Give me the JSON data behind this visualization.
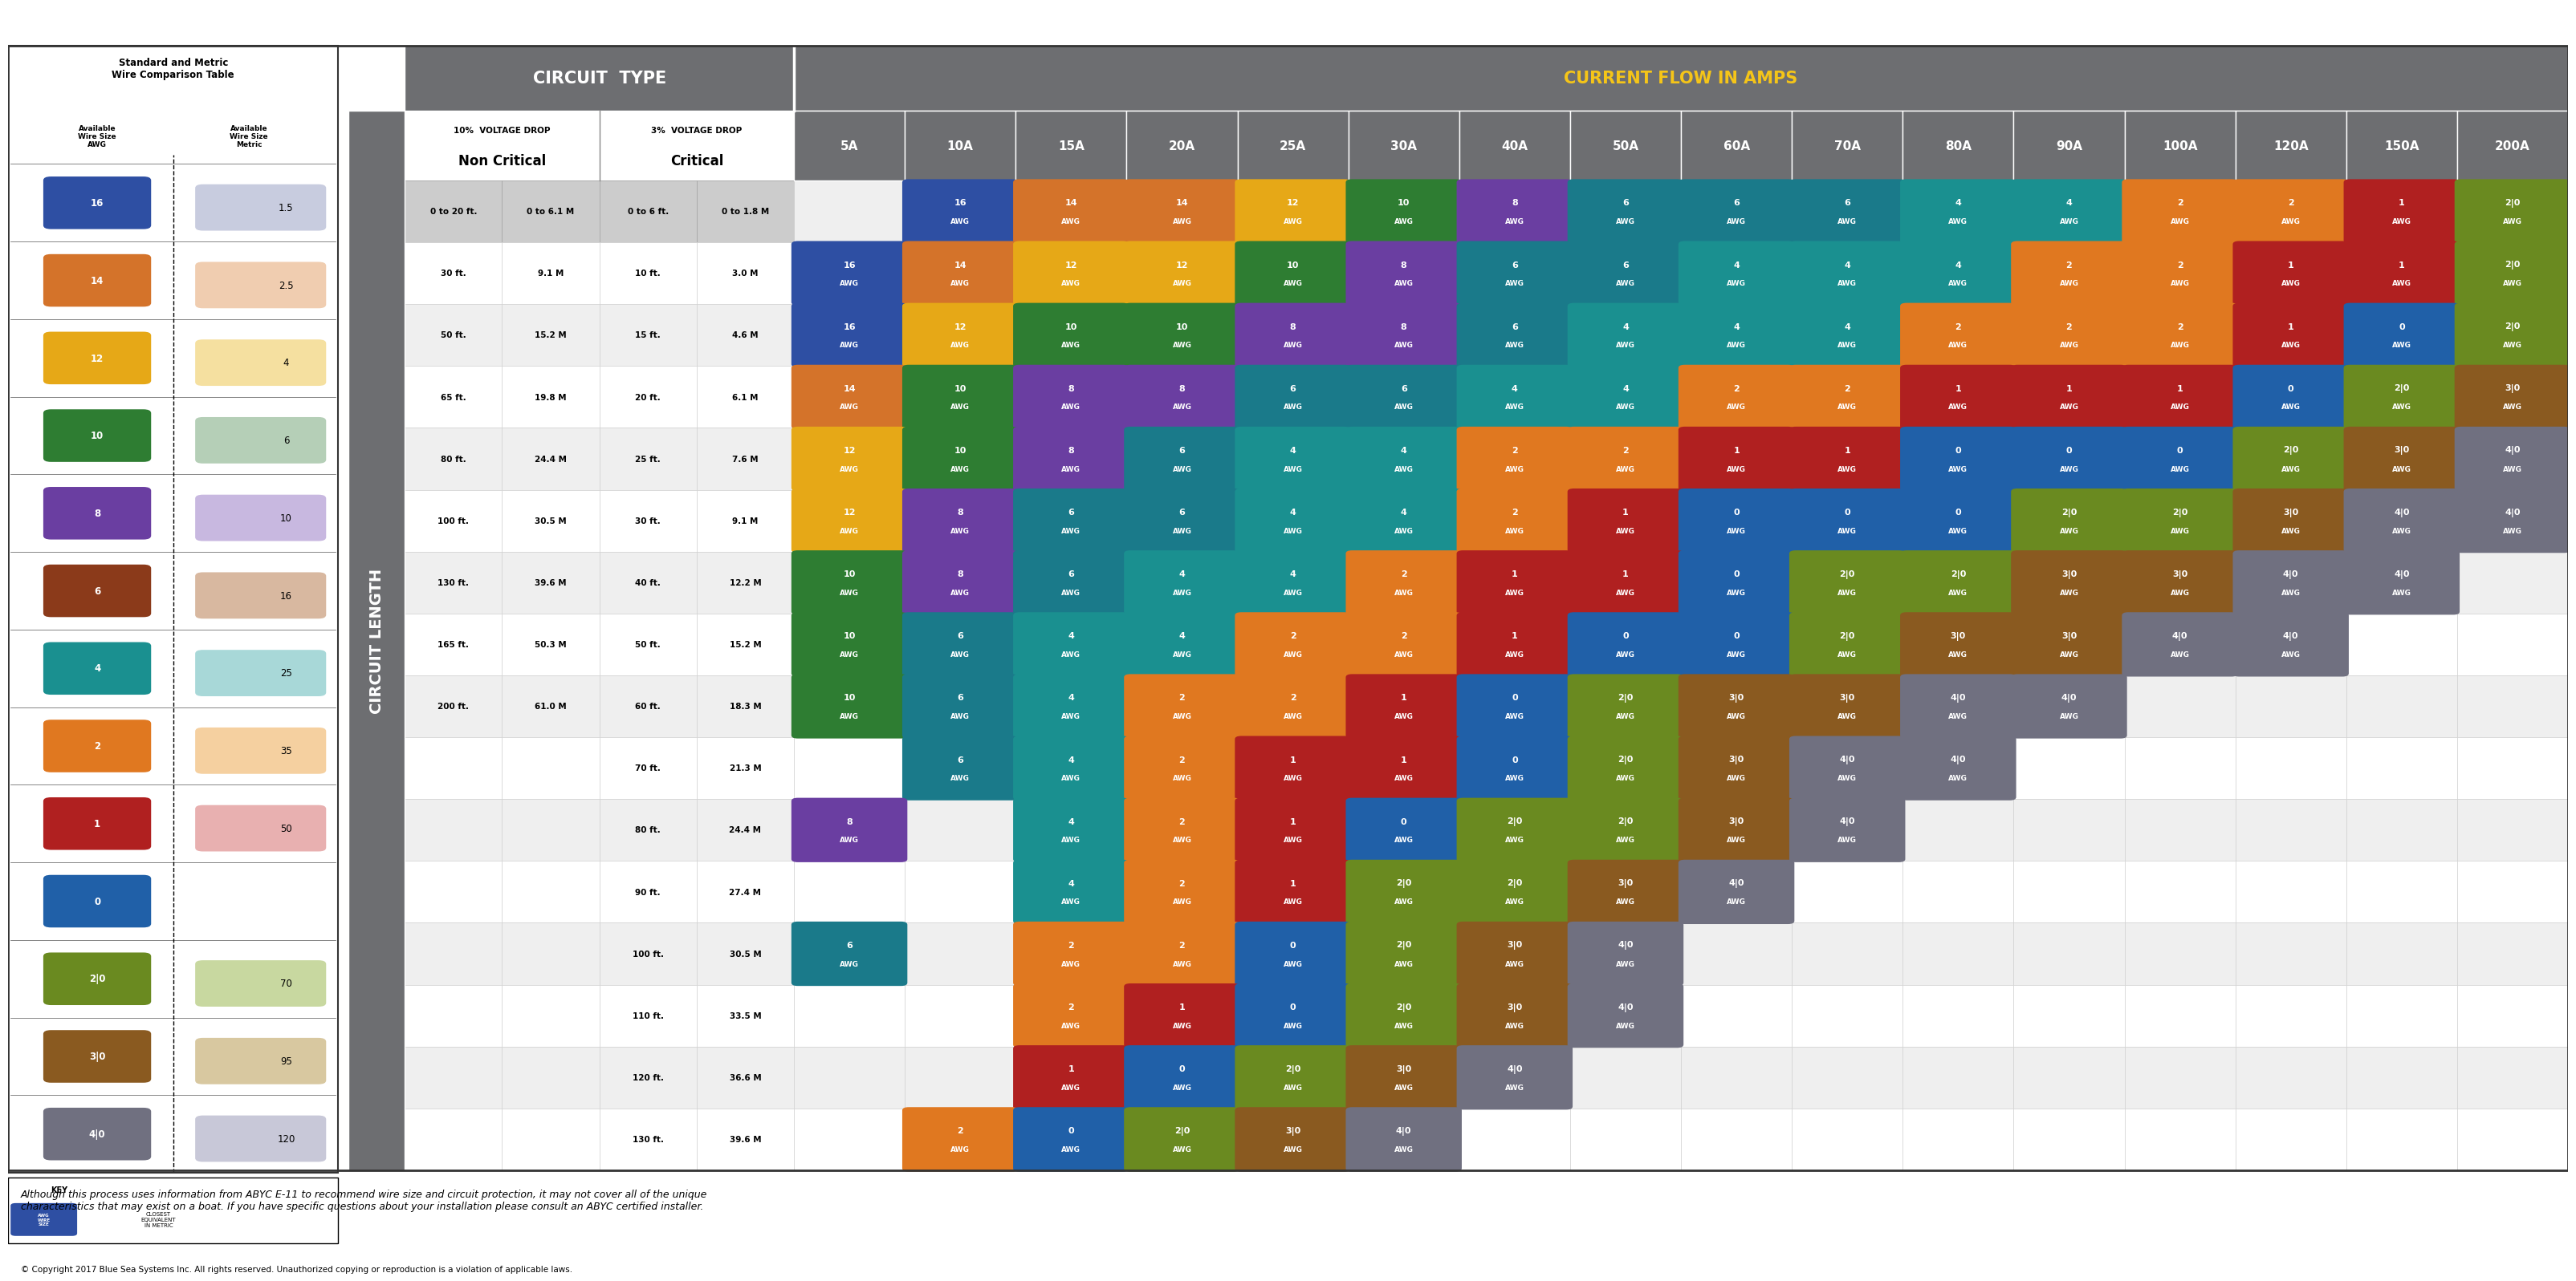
{
  "title_circuit": "CIRCUIT  TYPE",
  "title_current": "CURRENT FLOW IN AMPS",
  "header_bg": "#6d6e71",
  "amp_columns": [
    "5A",
    "10A",
    "15A",
    "20A",
    "25A",
    "30A",
    "40A",
    "50A",
    "60A",
    "70A",
    "80A",
    "90A",
    "100A",
    "120A",
    "150A",
    "200A"
  ],
  "circuit_rows": [
    [
      "0 to 20 ft.",
      "0 to 6.1 M",
      "0 to 6 ft.",
      "0 to 1.8 M"
    ],
    [
      "30 ft.",
      "9.1 M",
      "10 ft.",
      "3.0 M"
    ],
    [
      "50 ft.",
      "15.2 M",
      "15 ft.",
      "4.6 M"
    ],
    [
      "65 ft.",
      "19.8 M",
      "20 ft.",
      "6.1 M"
    ],
    [
      "80 ft.",
      "24.4 M",
      "25 ft.",
      "7.6 M"
    ],
    [
      "100 ft.",
      "30.5 M",
      "30 ft.",
      "9.1 M"
    ],
    [
      "130 ft.",
      "39.6 M",
      "40 ft.",
      "12.2 M"
    ],
    [
      "165 ft.",
      "50.3 M",
      "50 ft.",
      "15.2 M"
    ],
    [
      "200 ft.",
      "61.0 M",
      "60 ft.",
      "18.3 M"
    ],
    [
      "",
      "",
      "70 ft.",
      "21.3 M"
    ],
    [
      "",
      "",
      "80 ft.",
      "24.4 M"
    ],
    [
      "",
      "",
      "90 ft.",
      "27.4 M"
    ],
    [
      "",
      "",
      "100 ft.",
      "30.5 M"
    ],
    [
      "",
      "",
      "110 ft.",
      "33.5 M"
    ],
    [
      "",
      "",
      "120 ft.",
      "36.6 M"
    ],
    [
      "",
      "",
      "130 ft.",
      "39.6 M"
    ]
  ],
  "cells": [
    [
      0,
      1,
      "16\nAWG",
      "#2e4fa3"
    ],
    [
      0,
      2,
      "14\nAWG",
      "#d4732a"
    ],
    [
      0,
      3,
      "14\nAWG",
      "#d4732a"
    ],
    [
      0,
      4,
      "12\nAWG",
      "#e6a817"
    ],
    [
      0,
      5,
      "10\nAWG",
      "#2e7d32"
    ],
    [
      0,
      6,
      "8\nAWG",
      "#6a3ea1"
    ],
    [
      0,
      7,
      "6\nAWG",
      "#1a7a8a"
    ],
    [
      0,
      8,
      "6\nAWG",
      "#1a7a8a"
    ],
    [
      0,
      9,
      "6\nAWG",
      "#1a7a8a"
    ],
    [
      0,
      10,
      "4\nAWG",
      "#1a9090"
    ],
    [
      0,
      11,
      "4\nAWG",
      "#1a9090"
    ],
    [
      0,
      12,
      "2\nAWG",
      "#e07820"
    ],
    [
      0,
      13,
      "2\nAWG",
      "#e07820"
    ],
    [
      0,
      14,
      "1\nAWG",
      "#b02020"
    ],
    [
      0,
      15,
      "2|0\nAWG",
      "#6a8a20"
    ],
    [
      1,
      0,
      "16\nAWG",
      "#2e4fa3"
    ],
    [
      1,
      1,
      "14\nAWG",
      "#d4732a"
    ],
    [
      1,
      2,
      "12\nAWG",
      "#e6a817"
    ],
    [
      1,
      3,
      "12\nAWG",
      "#e6a817"
    ],
    [
      1,
      4,
      "10\nAWG",
      "#2e7d32"
    ],
    [
      1,
      5,
      "8\nAWG",
      "#6a3ea1"
    ],
    [
      1,
      6,
      "6\nAWG",
      "#1a7a8a"
    ],
    [
      1,
      7,
      "6\nAWG",
      "#1a7a8a"
    ],
    [
      1,
      8,
      "4\nAWG",
      "#1a9090"
    ],
    [
      1,
      9,
      "4\nAWG",
      "#1a9090"
    ],
    [
      1,
      10,
      "4\nAWG",
      "#1a9090"
    ],
    [
      1,
      11,
      "2\nAWG",
      "#e07820"
    ],
    [
      1,
      12,
      "2\nAWG",
      "#e07820"
    ],
    [
      1,
      13,
      "1\nAWG",
      "#b02020"
    ],
    [
      1,
      14,
      "1\nAWG",
      "#b02020"
    ],
    [
      1,
      15,
      "2|0\nAWG",
      "#6a8a20"
    ],
    [
      2,
      0,
      "16\nAWG",
      "#2e4fa3"
    ],
    [
      2,
      1,
      "12\nAWG",
      "#e6a817"
    ],
    [
      2,
      2,
      "10\nAWG",
      "#2e7d32"
    ],
    [
      2,
      3,
      "10\nAWG",
      "#2e7d32"
    ],
    [
      2,
      4,
      "8\nAWG",
      "#6a3ea1"
    ],
    [
      2,
      5,
      "8\nAWG",
      "#6a3ea1"
    ],
    [
      2,
      6,
      "6\nAWG",
      "#1a7a8a"
    ],
    [
      2,
      7,
      "4\nAWG",
      "#1a9090"
    ],
    [
      2,
      8,
      "4\nAWG",
      "#1a9090"
    ],
    [
      2,
      9,
      "4\nAWG",
      "#1a9090"
    ],
    [
      2,
      10,
      "2\nAWG",
      "#e07820"
    ],
    [
      2,
      11,
      "2\nAWG",
      "#e07820"
    ],
    [
      2,
      12,
      "2\nAWG",
      "#e07820"
    ],
    [
      2,
      13,
      "1\nAWG",
      "#b02020"
    ],
    [
      2,
      14,
      "0\nAWG",
      "#2060a8"
    ],
    [
      2,
      15,
      "2|0\nAWG",
      "#6a8a20"
    ],
    [
      3,
      0,
      "14\nAWG",
      "#d4732a"
    ],
    [
      3,
      1,
      "10\nAWG",
      "#2e7d32"
    ],
    [
      3,
      2,
      "8\nAWG",
      "#6a3ea1"
    ],
    [
      3,
      3,
      "8\nAWG",
      "#6a3ea1"
    ],
    [
      3,
      4,
      "6\nAWG",
      "#1a7a8a"
    ],
    [
      3,
      5,
      "6\nAWG",
      "#1a7a8a"
    ],
    [
      3,
      6,
      "4\nAWG",
      "#1a9090"
    ],
    [
      3,
      7,
      "4\nAWG",
      "#1a9090"
    ],
    [
      3,
      8,
      "2\nAWG",
      "#e07820"
    ],
    [
      3,
      9,
      "2\nAWG",
      "#e07820"
    ],
    [
      3,
      10,
      "1\nAWG",
      "#b02020"
    ],
    [
      3,
      11,
      "1\nAWG",
      "#b02020"
    ],
    [
      3,
      12,
      "1\nAWG",
      "#b02020"
    ],
    [
      3,
      13,
      "0\nAWG",
      "#2060a8"
    ],
    [
      3,
      14,
      "2|0\nAWG",
      "#6a8a20"
    ],
    [
      3,
      15,
      "3|0\nAWG",
      "#8a5a20"
    ],
    [
      4,
      0,
      "12\nAWG",
      "#e6a817"
    ],
    [
      4,
      1,
      "10\nAWG",
      "#2e7d32"
    ],
    [
      4,
      2,
      "8\nAWG",
      "#6a3ea1"
    ],
    [
      4,
      3,
      "6\nAWG",
      "#1a7a8a"
    ],
    [
      4,
      4,
      "4\nAWG",
      "#1a9090"
    ],
    [
      4,
      5,
      "4\nAWG",
      "#1a9090"
    ],
    [
      4,
      6,
      "2\nAWG",
      "#e07820"
    ],
    [
      4,
      7,
      "2\nAWG",
      "#e07820"
    ],
    [
      4,
      8,
      "1\nAWG",
      "#b02020"
    ],
    [
      4,
      9,
      "1\nAWG",
      "#b02020"
    ],
    [
      4,
      10,
      "0\nAWG",
      "#2060a8"
    ],
    [
      4,
      11,
      "0\nAWG",
      "#2060a8"
    ],
    [
      4,
      12,
      "0\nAWG",
      "#2060a8"
    ],
    [
      4,
      13,
      "2|0\nAWG",
      "#6a8a20"
    ],
    [
      4,
      14,
      "3|0\nAWG",
      "#8a5a20"
    ],
    [
      4,
      15,
      "4|0\nAWG",
      "#707080"
    ],
    [
      5,
      0,
      "12\nAWG",
      "#e6a817"
    ],
    [
      5,
      1,
      "8\nAWG",
      "#6a3ea1"
    ],
    [
      5,
      2,
      "6\nAWG",
      "#1a7a8a"
    ],
    [
      5,
      3,
      "6\nAWG",
      "#1a7a8a"
    ],
    [
      5,
      4,
      "4\nAWG",
      "#1a9090"
    ],
    [
      5,
      5,
      "4\nAWG",
      "#1a9090"
    ],
    [
      5,
      6,
      "2\nAWG",
      "#e07820"
    ],
    [
      5,
      7,
      "1\nAWG",
      "#b02020"
    ],
    [
      5,
      8,
      "0\nAWG",
      "#2060a8"
    ],
    [
      5,
      9,
      "0\nAWG",
      "#2060a8"
    ],
    [
      5,
      10,
      "0\nAWG",
      "#2060a8"
    ],
    [
      5,
      11,
      "2|0\nAWG",
      "#6a8a20"
    ],
    [
      5,
      12,
      "2|0\nAWG",
      "#6a8a20"
    ],
    [
      5,
      13,
      "3|0\nAWG",
      "#8a5a20"
    ],
    [
      5,
      14,
      "4|0\nAWG",
      "#707080"
    ],
    [
      5,
      15,
      "4|0\nAWG",
      "#707080"
    ],
    [
      6,
      0,
      "10\nAWG",
      "#2e7d32"
    ],
    [
      6,
      1,
      "8\nAWG",
      "#6a3ea1"
    ],
    [
      6,
      2,
      "6\nAWG",
      "#1a7a8a"
    ],
    [
      6,
      3,
      "4\nAWG",
      "#1a9090"
    ],
    [
      6,
      4,
      "4\nAWG",
      "#1a9090"
    ],
    [
      6,
      5,
      "2\nAWG",
      "#e07820"
    ],
    [
      6,
      6,
      "1\nAWG",
      "#b02020"
    ],
    [
      6,
      7,
      "1\nAWG",
      "#b02020"
    ],
    [
      6,
      8,
      "0\nAWG",
      "#2060a8"
    ],
    [
      6,
      9,
      "2|0\nAWG",
      "#6a8a20"
    ],
    [
      6,
      10,
      "2|0\nAWG",
      "#6a8a20"
    ],
    [
      6,
      11,
      "3|0\nAWG",
      "#8a5a20"
    ],
    [
      6,
      12,
      "3|0\nAWG",
      "#8a5a20"
    ],
    [
      6,
      13,
      "4|0\nAWG",
      "#707080"
    ],
    [
      6,
      14,
      "4|0\nAWG",
      "#707080"
    ],
    [
      7,
      0,
      "10\nAWG",
      "#2e7d32"
    ],
    [
      7,
      1,
      "6\nAWG",
      "#1a7a8a"
    ],
    [
      7,
      2,
      "4\nAWG",
      "#1a9090"
    ],
    [
      7,
      3,
      "4\nAWG",
      "#1a9090"
    ],
    [
      7,
      4,
      "2\nAWG",
      "#e07820"
    ],
    [
      7,
      5,
      "2\nAWG",
      "#e07820"
    ],
    [
      7,
      6,
      "1\nAWG",
      "#b02020"
    ],
    [
      7,
      7,
      "0\nAWG",
      "#2060a8"
    ],
    [
      7,
      8,
      "0\nAWG",
      "#2060a8"
    ],
    [
      7,
      9,
      "2|0\nAWG",
      "#6a8a20"
    ],
    [
      7,
      10,
      "3|0\nAWG",
      "#8a5a20"
    ],
    [
      7,
      11,
      "3|0\nAWG",
      "#8a5a20"
    ],
    [
      7,
      12,
      "4|0\nAWG",
      "#707080"
    ],
    [
      7,
      13,
      "4|0\nAWG",
      "#707080"
    ],
    [
      8,
      0,
      "10\nAWG",
      "#2e7d32"
    ],
    [
      8,
      1,
      "6\nAWG",
      "#1a7a8a"
    ],
    [
      8,
      2,
      "4\nAWG",
      "#1a9090"
    ],
    [
      8,
      3,
      "2\nAWG",
      "#e07820"
    ],
    [
      8,
      4,
      "2\nAWG",
      "#e07820"
    ],
    [
      8,
      5,
      "1\nAWG",
      "#b02020"
    ],
    [
      8,
      6,
      "0\nAWG",
      "#2060a8"
    ],
    [
      8,
      7,
      "2|0\nAWG",
      "#6a8a20"
    ],
    [
      8,
      8,
      "3|0\nAWG",
      "#8a5a20"
    ],
    [
      8,
      9,
      "3|0\nAWG",
      "#8a5a20"
    ],
    [
      8,
      10,
      "4|0\nAWG",
      "#707080"
    ],
    [
      8,
      11,
      "4|0\nAWG",
      "#707080"
    ],
    [
      9,
      1,
      "6\nAWG",
      "#1a7a8a"
    ],
    [
      9,
      2,
      "4\nAWG",
      "#1a9090"
    ],
    [
      9,
      3,
      "2\nAWG",
      "#e07820"
    ],
    [
      9,
      4,
      "1\nAWG",
      "#b02020"
    ],
    [
      9,
      5,
      "1\nAWG",
      "#b02020"
    ],
    [
      9,
      6,
      "0\nAWG",
      "#2060a8"
    ],
    [
      9,
      7,
      "2|0\nAWG",
      "#6a8a20"
    ],
    [
      9,
      8,
      "3|0\nAWG",
      "#8a5a20"
    ],
    [
      9,
      9,
      "4|0\nAWG",
      "#707080"
    ],
    [
      9,
      10,
      "4|0\nAWG",
      "#707080"
    ],
    [
      10,
      0,
      "8\nAWG",
      "#6a3ea1"
    ],
    [
      10,
      2,
      "4\nAWG",
      "#1a9090"
    ],
    [
      10,
      3,
      "2\nAWG",
      "#e07820"
    ],
    [
      10,
      4,
      "1\nAWG",
      "#b02020"
    ],
    [
      10,
      5,
      "0\nAWG",
      "#2060a8"
    ],
    [
      10,
      6,
      "2|0\nAWG",
      "#6a8a20"
    ],
    [
      10,
      7,
      "2|0\nAWG",
      "#6a8a20"
    ],
    [
      10,
      8,
      "3|0\nAWG",
      "#8a5a20"
    ],
    [
      10,
      9,
      "4|0\nAWG",
      "#707080"
    ],
    [
      11,
      2,
      "4\nAWG",
      "#1a9090"
    ],
    [
      11,
      3,
      "2\nAWG",
      "#e07820"
    ],
    [
      11,
      4,
      "1\nAWG",
      "#b02020"
    ],
    [
      11,
      5,
      "2|0\nAWG",
      "#6a8a20"
    ],
    [
      11,
      6,
      "2|0\nAWG",
      "#6a8a20"
    ],
    [
      11,
      7,
      "3|0\nAWG",
      "#8a5a20"
    ],
    [
      11,
      8,
      "4|0\nAWG",
      "#707080"
    ],
    [
      12,
      0,
      "6\nAWG",
      "#1a7a8a"
    ],
    [
      12,
      2,
      "2\nAWG",
      "#e07820"
    ],
    [
      12,
      3,
      "2\nAWG",
      "#e07820"
    ],
    [
      12,
      4,
      "0\nAWG",
      "#2060a8"
    ],
    [
      12,
      5,
      "2|0\nAWG",
      "#6a8a20"
    ],
    [
      12,
      6,
      "3|0\nAWG",
      "#8a5a20"
    ],
    [
      12,
      7,
      "4|0\nAWG",
      "#707080"
    ],
    [
      13,
      2,
      "2\nAWG",
      "#e07820"
    ],
    [
      13,
      3,
      "1\nAWG",
      "#b02020"
    ],
    [
      13,
      4,
      "0\nAWG",
      "#2060a8"
    ],
    [
      13,
      5,
      "2|0\nAWG",
      "#6a8a20"
    ],
    [
      13,
      6,
      "3|0\nAWG",
      "#8a5a20"
    ],
    [
      13,
      7,
      "4|0\nAWG",
      "#707080"
    ],
    [
      14,
      2,
      "1\nAWG",
      "#b02020"
    ],
    [
      14,
      3,
      "0\nAWG",
      "#2060a8"
    ],
    [
      14,
      4,
      "2|0\nAWG",
      "#6a8a20"
    ],
    [
      14,
      5,
      "3|0\nAWG",
      "#8a5a20"
    ],
    [
      14,
      6,
      "4|0\nAWG",
      "#707080"
    ],
    [
      15,
      1,
      "2\nAWG",
      "#e07820"
    ],
    [
      15,
      2,
      "0\nAWG",
      "#2060a8"
    ],
    [
      15,
      3,
      "2|0\nAWG",
      "#6a8a20"
    ],
    [
      15,
      4,
      "3|0\nAWG",
      "#8a5a20"
    ],
    [
      15,
      5,
      "4|0\nAWG",
      "#707080"
    ]
  ],
  "wire_comparison": [
    [
      "16",
      "1.5",
      "#2e4fa3",
      "#c8ccdf"
    ],
    [
      "14",
      "2.5",
      "#d4732a",
      "#f0cdb0"
    ],
    [
      "12",
      "4",
      "#e6a817",
      "#f5e0a0"
    ],
    [
      "10",
      "6",
      "#2e7d32",
      "#b5cfb7"
    ],
    [
      "8",
      "10",
      "#6a3ea1",
      "#c8b8e0"
    ],
    [
      "6",
      "16",
      "#8b3a1a",
      "#d8b8a0"
    ],
    [
      "4",
      "25",
      "#1a9090",
      "#a8d8d8"
    ],
    [
      "2",
      "35",
      "#e07820",
      "#f5d0a0"
    ],
    [
      "1",
      "50",
      "#b02020",
      "#e8b0b0"
    ],
    [
      "0",
      "",
      "#2060a8",
      "#a8c0df"
    ],
    [
      "2|0",
      "70",
      "#6a8a20",
      "#c8d8a0"
    ],
    [
      "3|0",
      "95",
      "#8a5a20",
      "#d8c8a0"
    ],
    [
      "4|0",
      "120",
      "#707080",
      "#c8c8d8"
    ]
  ],
  "footer_note": "Although this process uses information from ABYC E-11 to recommend wire size and circuit protection, it may not cover all of the unique\ncharacteristics that may exist on a boat. If you have specific questions about your installation please consult an ABYC certified installer.",
  "copyright": "© Copyright 2017 Blue Sea Systems Inc. All rights reserved. Unauthorized copying or reproduction is a violation of applicable laws."
}
